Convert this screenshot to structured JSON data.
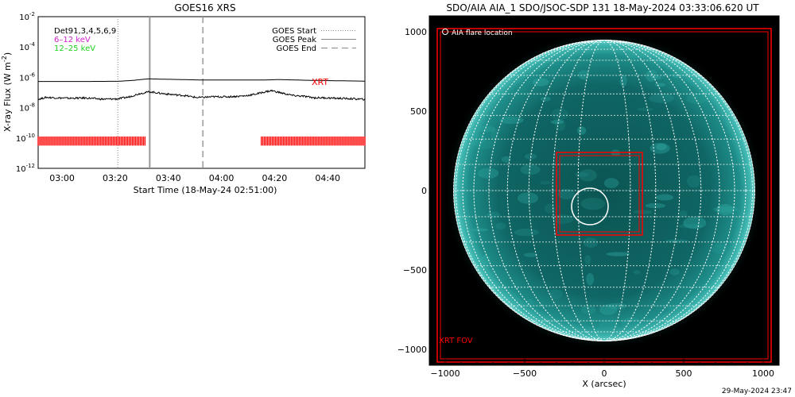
{
  "chart_data": [
    {
      "type": "line",
      "title": "GOES16 XRS",
      "xlabel": "Start Time (18-May-24 02:51:00)",
      "ylabel": "X-ray Flux (W m",
      "ylabel_sup": "-2",
      "ylabel_close": ")",
      "ylog": true,
      "ylim_exp": [
        -12,
        -2
      ],
      "ytick_exp": [
        -12,
        -10,
        -8,
        -6,
        -4,
        -2
      ],
      "ytick_base": "10",
      "xlim_min": [
        0,
        123
      ],
      "xticks": [
        {
          "min": 9,
          "label": "03:00"
        },
        {
          "min": 29,
          "label": "03:20"
        },
        {
          "min": 49,
          "label": "03:40"
        },
        {
          "min": 69,
          "label": "04:00"
        },
        {
          "min": 89,
          "label": "04:20"
        },
        {
          "min": 109,
          "label": "04:40"
        }
      ],
      "legend_left": [
        {
          "text": "Det91,3,4,5,6,9",
          "color": "#000000"
        },
        {
          "text": "6–12 keV",
          "color": "#d020d0"
        },
        {
          "text": "12–25 keV",
          "color": "#20d020"
        }
      ],
      "legend_right": [
        {
          "text": "GOES Start",
          "style": "dotted"
        },
        {
          "text": "GOES Peak",
          "style": "solid"
        },
        {
          "text": "GOES End",
          "style": "dashed"
        }
      ],
      "markers_min": {
        "start": 30,
        "peak": 42,
        "end": 62
      },
      "series": [
        {
          "label": "",
          "color": "#000000",
          "x_min": [
            0,
            10,
            20,
            30,
            36,
            40,
            42,
            46,
            52,
            60,
            70,
            80,
            86,
            90,
            94,
            100,
            110,
            123
          ],
          "log_flux": [
            -6.27,
            -6.27,
            -6.27,
            -6.26,
            -6.2,
            -6.12,
            -6.1,
            -6.12,
            -6.14,
            -6.17,
            -6.18,
            -6.18,
            -6.17,
            -6.15,
            -6.16,
            -6.19,
            -6.22,
            -6.25
          ]
        },
        {
          "label": "",
          "color": "#000000",
          "x_min": [
            0,
            3,
            8,
            12,
            18,
            24,
            30,
            34,
            38,
            42,
            46,
            50,
            55,
            60,
            66,
            72,
            78,
            82,
            86,
            88,
            92,
            96,
            100,
            104,
            108,
            112,
            116,
            123
          ],
          "log_flux": [
            -7.45,
            -7.32,
            -7.36,
            -7.38,
            -7.36,
            -7.44,
            -7.42,
            -7.3,
            -7.08,
            -6.95,
            -7.05,
            -7.13,
            -7.2,
            -7.34,
            -7.28,
            -7.28,
            -7.22,
            -7.1,
            -6.93,
            -6.88,
            -7.05,
            -7.2,
            -7.25,
            -7.35,
            -7.35,
            -7.38,
            -7.4,
            -7.45
          ]
        }
      ],
      "annotation": {
        "text": "XRT",
        "color": "#ff0000"
      },
      "xrt_bars": {
        "color": "#ff0000",
        "log_flux_range": [
          -10.5,
          -9.9
        ],
        "coverage_min": [
          [
            0,
            40.5
          ],
          [
            84,
            123
          ]
        ]
      }
    },
    {
      "type": "image",
      "title": "SDO/AIA AIA_1 SDO/JSOC-SDP 131 18-May-2024 03:33:06.620 UT",
      "xlabel": "X (arcsec)",
      "xlim": [
        -1100,
        1100
      ],
      "ylim": [
        -1100,
        1100
      ],
      "xticks": [
        -1000,
        -500,
        0,
        500,
        1000
      ],
      "yticks": [
        -1000,
        -500,
        0,
        500,
        1000
      ],
      "tick_labels": {
        "-1000": "−1000",
        "-500": "−500",
        "0": "0",
        "500": "500",
        "1000": "1000"
      },
      "solar_radius_arcsec": 947,
      "disk_color": "#127371",
      "grid_spacing_deg": 10,
      "legend_text": "AIA flare location",
      "flare_location_arcsec": {
        "x": -90,
        "y": -100,
        "radius": 115
      },
      "xrt_fov_label": "XRT FOV",
      "xrt_fov_arcsec": {
        "x0": -1050,
        "x1": 1050,
        "y0": -1080,
        "y1": 1020
      },
      "xrt_box_arcsec": {
        "x0": -300,
        "x1": 240,
        "y0": -280,
        "y1": 240
      },
      "colors": {
        "grid": "#ffffff",
        "fov": "#ff0000"
      }
    }
  ],
  "footer": {
    "timestamp": "29-May-2024 23:47"
  }
}
